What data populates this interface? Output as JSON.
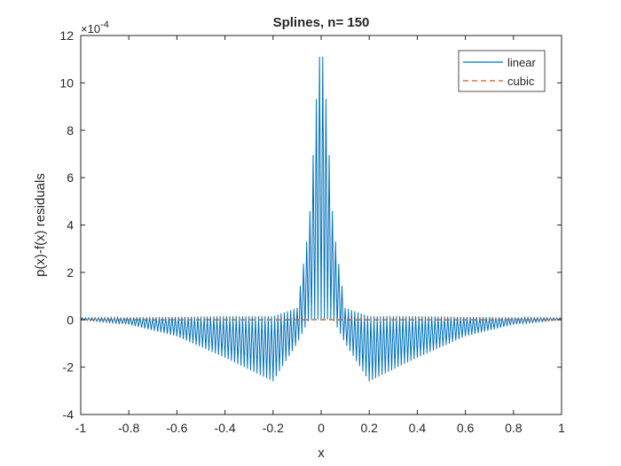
{
  "chart_data": {
    "type": "line",
    "title": "Splines, n= 150",
    "xlabel": "x",
    "ylabel": "p(x)-f(x) residuals",
    "y_exponent_base": "×10",
    "y_exponent_power": "-4",
    "xlim": [
      -1,
      1
    ],
    "ylim": [
      -4,
      12
    ],
    "y_scale_note": "values in units of 1e-4",
    "x_ticks": [
      -1,
      -0.8,
      -0.6,
      -0.4,
      -0.2,
      0,
      0.2,
      0.4,
      0.6,
      0.8,
      1
    ],
    "x_tick_labels": [
      "-1",
      "-0.8",
      "-0.6",
      "-0.4",
      "-0.2",
      "0",
      "0.2",
      "0.4",
      "0.6",
      "0.8",
      "1"
    ],
    "y_ticks": [
      -4,
      -2,
      0,
      2,
      4,
      6,
      8,
      10,
      12
    ],
    "y_tick_labels": [
      "-4",
      "-2",
      "0",
      "2",
      "4",
      "6",
      "8",
      "10",
      "12"
    ],
    "grid": false,
    "legend_position": "top-right",
    "n_nodes": 150,
    "series": [
      {
        "name": "linear",
        "color": "#0072BD",
        "style": "solid",
        "description": "oscillating residual; positive peaks near x=0 up to about 11.1, negative lobes reaching about -2.6 near x=±0.2, decaying to 0 at |x|=1",
        "envelope_points": [
          {
            "x": -1.0,
            "min": 0.0,
            "max": 0.08
          },
          {
            "x": -0.8,
            "min": -0.2,
            "max": 0.1
          },
          {
            "x": -0.6,
            "min": -0.7,
            "max": 0.12
          },
          {
            "x": -0.4,
            "min": -1.6,
            "max": 0.15
          },
          {
            "x": -0.2,
            "min": -2.6,
            "max": 0.15
          },
          {
            "x": -0.1,
            "min": -1.0,
            "max": 0.5
          },
          {
            "x": -0.05,
            "min": 0.0,
            "max": 4.0
          },
          {
            "x": -0.01,
            "min": 0.0,
            "max": 11.1
          },
          {
            "x": 0.01,
            "min": 0.0,
            "max": 11.1
          },
          {
            "x": 0.05,
            "min": 0.0,
            "max": 4.0
          },
          {
            "x": 0.1,
            "min": -1.0,
            "max": 0.5
          },
          {
            "x": 0.2,
            "min": -2.6,
            "max": 0.15
          },
          {
            "x": 0.4,
            "min": -1.6,
            "max": 0.15
          },
          {
            "x": 0.6,
            "min": -0.7,
            "max": 0.12
          },
          {
            "x": 0.8,
            "min": -0.2,
            "max": 0.1
          },
          {
            "x": 1.0,
            "min": 0.0,
            "max": 0.08
          }
        ]
      },
      {
        "name": "cubic",
        "color": "#D95319",
        "style": "dashed",
        "description": "residual near zero across the full range",
        "x": [
          -1,
          -0.5,
          0,
          0.5,
          1
        ],
        "y": [
          0,
          0,
          0,
          0,
          0
        ]
      }
    ]
  }
}
